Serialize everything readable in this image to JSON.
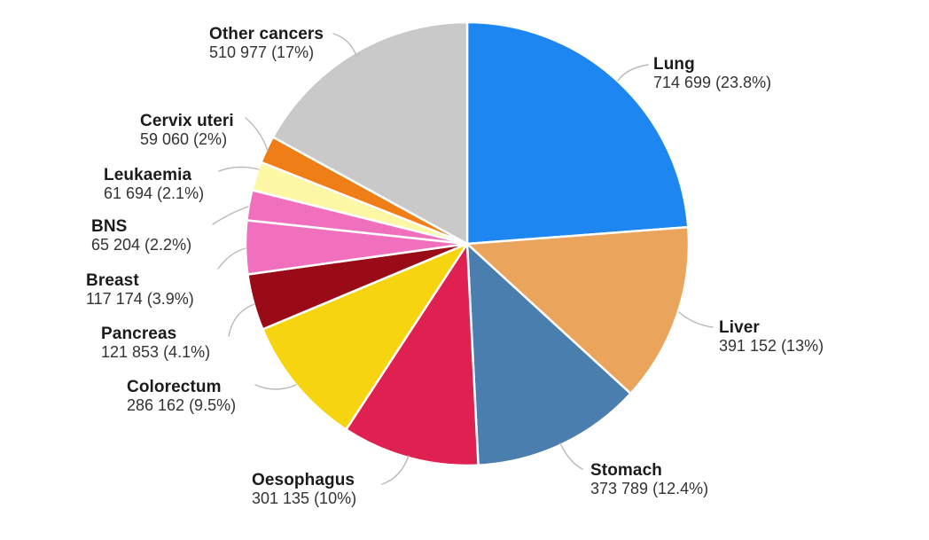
{
  "chart_data": {
    "type": "pie",
    "start_angle_deg": 0,
    "direction": "clockwise",
    "legend_position": "none",
    "labels_outside_with_leader_lines": true,
    "separator_color": "#ffffff",
    "leader_line_color": "#b9b9b9",
    "background_color": "#ffffff",
    "slices": [
      {
        "label": "Lung",
        "value": 714699,
        "percent": 23.8,
        "display": "714 699 (23.8%)",
        "color": "#1e86f0"
      },
      {
        "label": "Liver",
        "value": 391152,
        "percent": 13,
        "display": "391 152 (13%)",
        "color": "#eaa45c"
      },
      {
        "label": "Stomach",
        "value": 373789,
        "percent": 12.4,
        "display": "373 789 (12.4%)",
        "color": "#4a7eae"
      },
      {
        "label": "Oesophagus",
        "value": 301135,
        "percent": 10,
        "display": "301 135 (10%)",
        "color": "#de2150"
      },
      {
        "label": "Colorectum",
        "value": 286162,
        "percent": 9.5,
        "display": "286 162 (9.5%)",
        "color": "#f6d410"
      },
      {
        "label": "Pancreas",
        "value": 121853,
        "percent": 4.1,
        "display": "121 853 (4.1%)",
        "color": "#9a0b18"
      },
      {
        "label": "Breast",
        "value": 117174,
        "percent": 3.9,
        "display": "117 174 (3.9%)",
        "color": "#f170bd"
      },
      {
        "label": "BNS",
        "value": 65204,
        "percent": 2.2,
        "display": "65 204 (2.2%)",
        "color": "#f170bd"
      },
      {
        "label": "Leukaemia",
        "value": 61694,
        "percent": 2.1,
        "display": "61 694 (2.1%)",
        "color": "#fcf8a5"
      },
      {
        "label": "Cervix uteri",
        "value": 59060,
        "percent": 2,
        "display": "59 060 (2%)",
        "color": "#f07e17"
      },
      {
        "label": "Other cancers",
        "value": 510977,
        "percent": 17,
        "display": "510 977 (17%)",
        "color": "#c9c9c9"
      }
    ]
  }
}
